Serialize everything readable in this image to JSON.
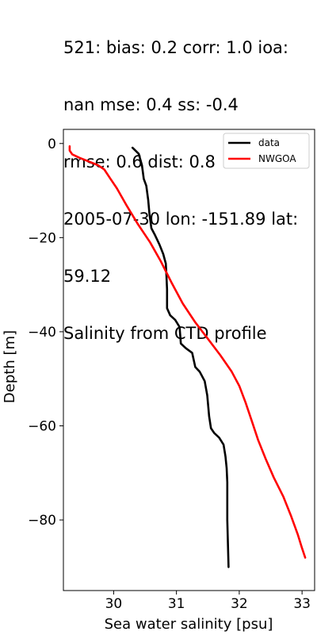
{
  "title_lines": [
    "521: bias: 0.2  corr: 1.0  ioa:",
    "nan  mse: 0.4  ss: -0.4",
    "rmse: 0.6  dist: 0.8",
    "2005-07-30 lon: -151.89 lat:",
    "59.12",
    "Salinity from CTD profile"
  ],
  "chart_data": {
    "type": "line",
    "xlabel": "Sea water salinity [psu]",
    "ylabel": "Depth [m]",
    "xlim": [
      29.2,
      33.2
    ],
    "ylim": [
      -95,
      3
    ],
    "xticks": [
      30,
      31,
      32,
      33
    ],
    "yticks": [
      0,
      -20,
      -40,
      -60,
      -80
    ],
    "grid": false,
    "legend_position": "top-right",
    "series": [
      {
        "name": "data",
        "color": "#000000",
        "points": [
          [
            30.3,
            -0.9
          ],
          [
            30.4,
            -2.2
          ],
          [
            30.45,
            -4.6
          ],
          [
            30.48,
            -7.5
          ],
          [
            30.52,
            -9.0
          ],
          [
            30.55,
            -12.0
          ],
          [
            30.57,
            -15.0
          ],
          [
            30.6,
            -18.0
          ],
          [
            30.66,
            -19.5
          ],
          [
            30.73,
            -21.5
          ],
          [
            30.79,
            -23.5
          ],
          [
            30.83,
            -25.5
          ],
          [
            30.84,
            -28.0
          ],
          [
            30.85,
            -31.0
          ],
          [
            30.85,
            -35.0
          ],
          [
            30.9,
            -36.5
          ],
          [
            30.98,
            -37.5
          ],
          [
            31.05,
            -39.0
          ],
          [
            31.07,
            -42.5
          ],
          [
            31.15,
            -43.5
          ],
          [
            31.25,
            -44.5
          ],
          [
            31.3,
            -47.5
          ],
          [
            31.37,
            -48.5
          ],
          [
            31.45,
            -50.5
          ],
          [
            31.49,
            -53.5
          ],
          [
            31.52,
            -58.0
          ],
          [
            31.55,
            -60.5
          ],
          [
            31.6,
            -61.5
          ],
          [
            31.68,
            -62.5
          ],
          [
            31.75,
            -64.0
          ],
          [
            31.78,
            -66.5
          ],
          [
            31.8,
            -69.0
          ],
          [
            31.81,
            -72.0
          ],
          [
            31.81,
            -76.0
          ],
          [
            31.81,
            -80.0
          ],
          [
            31.82,
            -85.0
          ],
          [
            31.83,
            -90.0
          ]
        ]
      },
      {
        "name": "NWGOA",
        "color": "#ff0000",
        "points": [
          [
            29.3,
            -0.6
          ],
          [
            29.3,
            -1.5
          ],
          [
            29.34,
            -2.3
          ],
          [
            29.45,
            -3.0
          ],
          [
            29.6,
            -3.8
          ],
          [
            29.75,
            -4.6
          ],
          [
            29.85,
            -5.5
          ],
          [
            29.95,
            -7.5
          ],
          [
            30.05,
            -9.5
          ],
          [
            30.2,
            -13.0
          ],
          [
            30.38,
            -17.0
          ],
          [
            30.58,
            -21.0
          ],
          [
            30.75,
            -25.0
          ],
          [
            30.92,
            -29.5
          ],
          [
            31.1,
            -34.0
          ],
          [
            31.3,
            -38.0
          ],
          [
            31.5,
            -41.5
          ],
          [
            31.7,
            -45.0
          ],
          [
            31.88,
            -48.5
          ],
          [
            32.0,
            -51.5
          ],
          [
            32.1,
            -55.0
          ],
          [
            32.2,
            -59.0
          ],
          [
            32.3,
            -63.0
          ],
          [
            32.42,
            -67.0
          ],
          [
            32.55,
            -71.0
          ],
          [
            32.7,
            -75.0
          ],
          [
            32.82,
            -79.0
          ],
          [
            32.93,
            -83.0
          ],
          [
            33.0,
            -86.0
          ],
          [
            33.05,
            -88.0
          ]
        ]
      }
    ]
  }
}
